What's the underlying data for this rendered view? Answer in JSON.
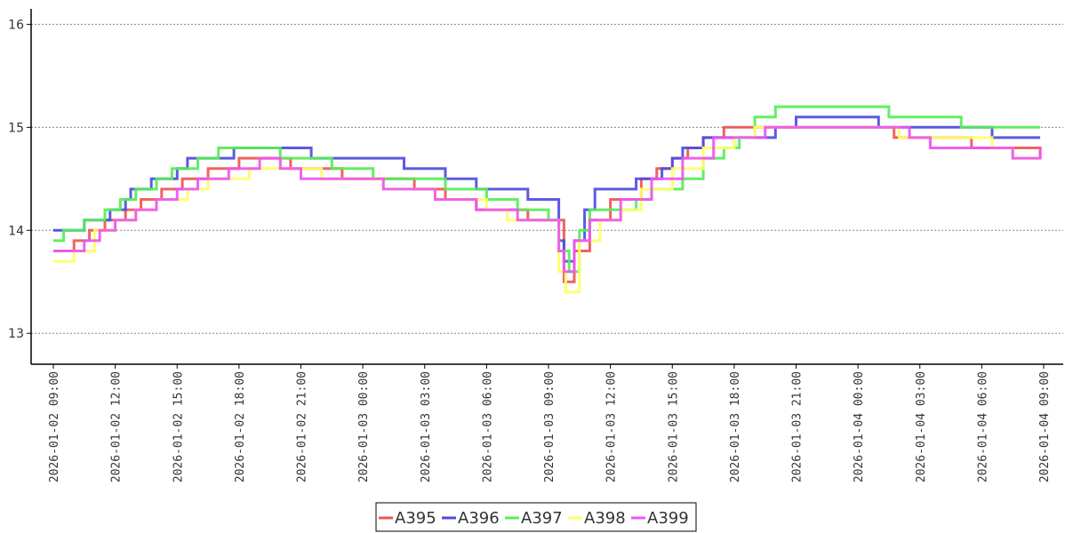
{
  "chart_data": {
    "type": "line",
    "x_start": "2026-01-02 09:00",
    "x_end": "2026-01-04 09:00",
    "ylim": [
      12.7,
      16.15
    ],
    "yticks": [
      13,
      14,
      15,
      16
    ],
    "ytick_labels": [
      "13",
      "14",
      "15",
      "16"
    ],
    "xtick_labels": [
      "2026-01-02 09:00",
      "2026-01-02 12:00",
      "2026-01-02 15:00",
      "2026-01-02 18:00",
      "2026-01-02 21:00",
      "2026-01-03 00:00",
      "2026-01-03 03:00",
      "2026-01-03 06:00",
      "2026-01-03 09:00",
      "2026-01-03 12:00",
      "2026-01-03 15:00",
      "2026-01-03 18:00",
      "2026-01-03 21:00",
      "2026-01-04 00:00",
      "2026-01-04 03:00",
      "2026-01-04 06:00",
      "2026-01-04 09:00"
    ],
    "grid": "horizontal-dotted",
    "legend_position": "bottom-center",
    "series": [
      {
        "name": "A395",
        "color": "#ee5555",
        "points": [
          [
            "2026-01-02 09:00",
            13.8
          ],
          [
            "2026-01-02 10:00",
            13.9
          ],
          [
            "2026-01-02 10:45",
            14.0
          ],
          [
            "2026-01-02 11:30",
            14.1
          ],
          [
            "2026-01-02 12:30",
            14.2
          ],
          [
            "2026-01-02 13:15",
            14.3
          ],
          [
            "2026-01-02 14:15",
            14.4
          ],
          [
            "2026-01-02 15:15",
            14.5
          ],
          [
            "2026-01-02 16:30",
            14.6
          ],
          [
            "2026-01-02 18:00",
            14.7
          ],
          [
            "2026-01-02 19:00",
            14.7
          ],
          [
            "2026-01-02 20:00",
            14.7
          ],
          [
            "2026-01-02 20:30",
            14.6
          ],
          [
            "2026-01-02 23:00",
            14.5
          ],
          [
            "2026-01-03 02:00",
            14.5
          ],
          [
            "2026-01-03 02:30",
            14.4
          ],
          [
            "2026-01-03 04:00",
            14.3
          ],
          [
            "2026-01-03 05:30",
            14.2
          ],
          [
            "2026-01-03 07:00",
            14.2
          ],
          [
            "2026-01-03 08:00",
            14.1
          ],
          [
            "2026-01-03 09:15",
            14.1
          ],
          [
            "2026-01-03 09:45",
            13.5
          ],
          [
            "2026-01-03 10:15",
            13.8
          ],
          [
            "2026-01-03 11:00",
            14.1
          ],
          [
            "2026-01-03 12:00",
            14.3
          ],
          [
            "2026-01-03 13:30",
            14.5
          ],
          [
            "2026-01-03 14:15",
            14.6
          ],
          [
            "2026-01-03 15:00",
            14.7
          ],
          [
            "2026-01-03 15:45",
            14.8
          ],
          [
            "2026-01-03 16:30",
            14.9
          ],
          [
            "2026-01-03 17:30",
            15.0
          ],
          [
            "2026-01-04 01:00",
            15.0
          ],
          [
            "2026-01-04 01:45",
            14.9
          ],
          [
            "2026-01-04 04:30",
            14.9
          ],
          [
            "2026-01-04 05:30",
            14.8
          ],
          [
            "2026-01-04 08:40",
            14.8
          ],
          [
            "2026-01-04 08:50",
            14.7
          ]
        ]
      },
      {
        "name": "A396",
        "color": "#4d4ddd",
        "points": [
          [
            "2026-01-02 09:00",
            14.0
          ],
          [
            "2026-01-02 10:30",
            14.1
          ],
          [
            "2026-01-02 11:45",
            14.2
          ],
          [
            "2026-01-02 12:30",
            14.3
          ],
          [
            "2026-01-02 12:45",
            14.4
          ],
          [
            "2026-01-02 13:45",
            14.5
          ],
          [
            "2026-01-02 15:00",
            14.6
          ],
          [
            "2026-01-02 15:30",
            14.7
          ],
          [
            "2026-01-02 17:45",
            14.8
          ],
          [
            "2026-01-02 21:00",
            14.8
          ],
          [
            "2026-01-02 21:30",
            14.7
          ],
          [
            "2026-01-03 01:30",
            14.7
          ],
          [
            "2026-01-03 02:00",
            14.6
          ],
          [
            "2026-01-03 04:00",
            14.5
          ],
          [
            "2026-01-03 05:15",
            14.5
          ],
          [
            "2026-01-03 05:30",
            14.4
          ],
          [
            "2026-01-03 07:45",
            14.4
          ],
          [
            "2026-01-03 08:00",
            14.3
          ],
          [
            "2026-01-03 09:15",
            14.3
          ],
          [
            "2026-01-03 09:30",
            13.9
          ],
          [
            "2026-01-03 09:45",
            13.7
          ],
          [
            "2026-01-03 10:15",
            13.9
          ],
          [
            "2026-01-03 10:45",
            14.2
          ],
          [
            "2026-01-03 11:15",
            14.4
          ],
          [
            "2026-01-03 12:30",
            14.4
          ],
          [
            "2026-01-03 13:15",
            14.5
          ],
          [
            "2026-01-03 14:30",
            14.6
          ],
          [
            "2026-01-03 15:00",
            14.7
          ],
          [
            "2026-01-03 15:30",
            14.8
          ],
          [
            "2026-01-03 16:30",
            14.9
          ],
          [
            "2026-01-03 19:30",
            14.9
          ],
          [
            "2026-01-03 20:00",
            15.0
          ],
          [
            "2026-01-03 21:00",
            15.1
          ],
          [
            "2026-01-04 00:30",
            15.1
          ],
          [
            "2026-01-04 01:00",
            15.0
          ],
          [
            "2026-01-04 06:00",
            15.0
          ],
          [
            "2026-01-04 06:30",
            14.9
          ],
          [
            "2026-01-04 08:50",
            14.9
          ]
        ]
      },
      {
        "name": "A397",
        "color": "#55ee55",
        "points": [
          [
            "2026-01-02 09:00",
            13.9
          ],
          [
            "2026-01-02 09:30",
            14.0
          ],
          [
            "2026-01-02 10:30",
            14.1
          ],
          [
            "2026-01-02 11:30",
            14.2
          ],
          [
            "2026-01-02 12:15",
            14.3
          ],
          [
            "2026-01-02 13:00",
            14.4
          ],
          [
            "2026-01-02 14:00",
            14.5
          ],
          [
            "2026-01-02 14:45",
            14.6
          ],
          [
            "2026-01-02 16:00",
            14.7
          ],
          [
            "2026-01-02 17:00",
            14.8
          ],
          [
            "2026-01-02 19:30",
            14.8
          ],
          [
            "2026-01-02 20:00",
            14.7
          ],
          [
            "2026-01-02 22:00",
            14.7
          ],
          [
            "2026-01-02 22:30",
            14.6
          ],
          [
            "2026-01-03 00:00",
            14.6
          ],
          [
            "2026-01-03 00:30",
            14.5
          ],
          [
            "2026-01-03 03:30",
            14.5
          ],
          [
            "2026-01-03 04:00",
            14.4
          ],
          [
            "2026-01-03 06:00",
            14.3
          ],
          [
            "2026-01-03 07:00",
            14.3
          ],
          [
            "2026-01-03 07:30",
            14.2
          ],
          [
            "2026-01-03 09:00",
            14.1
          ],
          [
            "2026-01-03 09:30",
            13.8
          ],
          [
            "2026-01-03 10:00",
            13.6
          ],
          [
            "2026-01-03 10:30",
            14.0
          ],
          [
            "2026-01-03 11:00",
            14.2
          ],
          [
            "2026-01-03 12:30",
            14.2
          ],
          [
            "2026-01-03 13:15",
            14.3
          ],
          [
            "2026-01-03 14:00",
            14.4
          ],
          [
            "2026-01-03 15:30",
            14.5
          ],
          [
            "2026-01-03 16:30",
            14.7
          ],
          [
            "2026-01-03 17:30",
            14.8
          ],
          [
            "2026-01-03 18:15",
            14.9
          ],
          [
            "2026-01-03 19:00",
            15.1
          ],
          [
            "2026-01-03 20:00",
            15.2
          ],
          [
            "2026-01-04 00:30",
            15.2
          ],
          [
            "2026-01-04 01:30",
            15.1
          ],
          [
            "2026-01-04 04:00",
            15.1
          ],
          [
            "2026-01-04 05:00",
            15.0
          ],
          [
            "2026-01-04 08:50",
            15.0
          ]
        ]
      },
      {
        "name": "A398",
        "color": "#ffff66",
        "points": [
          [
            "2026-01-02 09:00",
            13.7
          ],
          [
            "2026-01-02 10:00",
            13.8
          ],
          [
            "2026-01-02 11:00",
            14.0
          ],
          [
            "2026-01-02 12:00",
            14.1
          ],
          [
            "2026-01-02 13:00",
            14.2
          ],
          [
            "2026-01-02 14:00",
            14.3
          ],
          [
            "2026-01-02 15:30",
            14.4
          ],
          [
            "2026-01-02 16:30",
            14.5
          ],
          [
            "2026-01-02 18:30",
            14.6
          ],
          [
            "2026-01-02 22:00",
            14.5
          ],
          [
            "2026-01-03 00:30",
            14.5
          ],
          [
            "2026-01-03 01:00",
            14.4
          ],
          [
            "2026-01-03 03:00",
            14.4
          ],
          [
            "2026-01-03 03:30",
            14.3
          ],
          [
            "2026-01-03 06:00",
            14.2
          ],
          [
            "2026-01-03 07:00",
            14.1
          ],
          [
            "2026-01-03 09:00",
            14.1
          ],
          [
            "2026-01-03 09:30",
            13.6
          ],
          [
            "2026-01-03 09:50",
            13.4
          ],
          [
            "2026-01-03 10:30",
            13.9
          ],
          [
            "2026-01-03 11:30",
            14.1
          ],
          [
            "2026-01-03 12:30",
            14.2
          ],
          [
            "2026-01-03 13:30",
            14.4
          ],
          [
            "2026-01-03 15:00",
            14.6
          ],
          [
            "2026-01-03 16:30",
            14.8
          ],
          [
            "2026-01-03 18:00",
            14.9
          ],
          [
            "2026-01-03 19:00",
            15.0
          ],
          [
            "2026-01-04 01:30",
            15.0
          ],
          [
            "2026-01-04 02:00",
            14.9
          ],
          [
            "2026-01-04 06:30",
            14.8
          ],
          [
            "2026-01-04 07:30",
            14.7
          ],
          [
            "2026-01-04 08:50",
            14.7
          ]
        ]
      },
      {
        "name": "A399",
        "color": "#ee55ee",
        "points": [
          [
            "2026-01-02 09:00",
            13.8
          ],
          [
            "2026-01-02 10:30",
            13.9
          ],
          [
            "2026-01-02 11:15",
            14.0
          ],
          [
            "2026-01-02 12:00",
            14.1
          ],
          [
            "2026-01-02 13:00",
            14.2
          ],
          [
            "2026-01-02 14:00",
            14.3
          ],
          [
            "2026-01-02 15:00",
            14.4
          ],
          [
            "2026-01-02 16:00",
            14.5
          ],
          [
            "2026-01-02 17:30",
            14.6
          ],
          [
            "2026-01-02 19:00",
            14.7
          ],
          [
            "2026-01-02 20:00",
            14.6
          ],
          [
            "2026-01-02 21:00",
            14.5
          ],
          [
            "2026-01-02 23:30",
            14.5
          ],
          [
            "2026-01-03 01:00",
            14.4
          ],
          [
            "2026-01-03 03:30",
            14.3
          ],
          [
            "2026-01-03 05:30",
            14.2
          ],
          [
            "2026-01-03 07:30",
            14.1
          ],
          [
            "2026-01-03 09:00",
            14.1
          ],
          [
            "2026-01-03 09:30",
            13.8
          ],
          [
            "2026-01-03 09:45",
            13.6
          ],
          [
            "2026-01-03 10:15",
            13.9
          ],
          [
            "2026-01-03 11:00",
            14.1
          ],
          [
            "2026-01-03 12:30",
            14.3
          ],
          [
            "2026-01-03 14:00",
            14.5
          ],
          [
            "2026-01-03 15:30",
            14.7
          ],
          [
            "2026-01-03 17:00",
            14.9
          ],
          [
            "2026-01-03 19:30",
            15.0
          ],
          [
            "2026-01-04 00:30",
            15.0
          ],
          [
            "2026-01-04 02:30",
            14.9
          ],
          [
            "2026-01-04 03:30",
            14.8
          ],
          [
            "2026-01-04 05:30",
            14.8
          ],
          [
            "2026-01-04 07:30",
            14.7
          ],
          [
            "2026-01-04 08:50",
            14.8
          ]
        ]
      }
    ]
  }
}
